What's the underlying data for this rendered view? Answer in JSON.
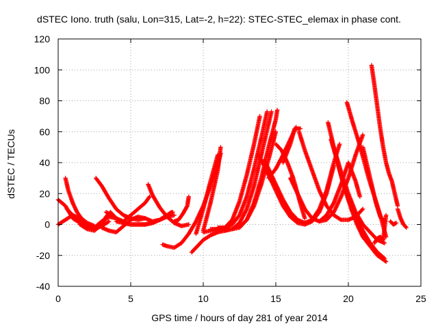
{
  "chart_data": {
    "type": "scatter",
    "title": "dSTEC Iono. truth (salu, Lon=315, Lat=-2, h=22): STEC-STEC_elemax in phase cont.",
    "xlabel": "GPS time / hours of day 281 of year 2014",
    "ylabel": "dSTEC  / TECUs",
    "xlim": [
      0,
      25
    ],
    "ylim": [
      -40,
      120
    ],
    "xticks": [
      "0",
      "5",
      "10",
      "15",
      "20",
      "25"
    ],
    "yticks": [
      "-40",
      "-20",
      "0",
      "20",
      "40",
      "60",
      "80",
      "100",
      "120"
    ],
    "grid": true,
    "legend": "none",
    "marker": "plus",
    "color": "#ff0000",
    "series": [
      {
        "x": [
          0.0,
          0.5,
          1.0,
          1.5,
          2.0,
          2.5,
          3.0
        ],
        "y": [
          16,
          12,
          4,
          1,
          -2,
          -3,
          0
        ]
      },
      {
        "x": [
          0.0,
          0.5,
          1.0,
          1.5,
          2.0,
          2.5,
          3.0,
          3.5
        ],
        "y": [
          0,
          3,
          6,
          4,
          0,
          -3,
          -1,
          2
        ]
      },
      {
        "x": [
          0.5,
          0.7,
          1.0,
          1.3,
          1.6,
          2.0,
          2.5
        ],
        "y": [
          30,
          22,
          14,
          8,
          4,
          1,
          -1
        ]
      },
      {
        "x": [
          0.6,
          1.0,
          1.5,
          2.0,
          2.5,
          3.0
        ],
        "y": [
          10,
          6,
          2,
          -2,
          -3,
          2
        ]
      },
      {
        "x": [
          1.5,
          2.0,
          2.5,
          3.0,
          3.3,
          3.6,
          4.0
        ],
        "y": [
          0,
          -3,
          -4,
          0,
          5,
          8,
          4
        ]
      },
      {
        "x": [
          2.0,
          2.5,
          3.0,
          3.5,
          4.0,
          4.5,
          5.0,
          5.5,
          6.0,
          6.3
        ],
        "y": [
          -2,
          -2,
          2,
          5,
          4,
          2,
          6,
          10,
          14,
          18
        ]
      },
      {
        "x": [
          2.6,
          3.0,
          3.5,
          4.0,
          4.5,
          5.0,
          5.5,
          6.0
        ],
        "y": [
          30,
          25,
          17,
          10,
          6,
          4,
          3,
          4
        ]
      },
      {
        "x": [
          3.0,
          3.5,
          4.0,
          4.5,
          5.0,
          5.5,
          6.0,
          6.5,
          7.0,
          7.5,
          8.0
        ],
        "y": [
          -2,
          -4,
          -5,
          -1,
          3,
          5,
          4,
          2,
          3,
          5,
          6
        ]
      },
      {
        "x": [
          3.3,
          4.0,
          4.5,
          5.0,
          5.5,
          6.0,
          6.5,
          7.0,
          7.5,
          7.8
        ],
        "y": [
          8,
          4,
          1,
          0,
          0,
          0,
          1,
          3,
          6,
          8
        ]
      },
      {
        "x": [
          4.0,
          4.5,
          5.0,
          5.5,
          6.0,
          6.5,
          7.0,
          7.5,
          7.9
        ],
        "y": [
          2,
          1,
          0,
          0,
          0,
          1,
          3,
          6,
          8
        ]
      },
      {
        "x": [
          6.2,
          6.5,
          7.0,
          7.5,
          8.0,
          8.5,
          9.0
        ],
        "y": [
          26,
          19,
          11,
          5,
          1,
          -1,
          0
        ]
      },
      {
        "x": [
          7.2,
          7.5,
          8.0,
          8.5,
          9.0,
          9.5,
          10.0,
          10.5,
          11.0,
          11.2
        ],
        "y": [
          -13,
          -14,
          -15,
          -12,
          -6,
          2,
          12,
          25,
          38,
          46
        ]
      },
      {
        "x": [
          8.0,
          8.3,
          8.6,
          8.9,
          9.0
        ],
        "y": [
          2,
          3,
          7,
          12,
          18
        ]
      },
      {
        "x": [
          9.2,
          9.6,
          10.0,
          10.5,
          11.0,
          11.5,
          11.8
        ],
        "y": [
          -18,
          -14,
          -10,
          -7,
          -5,
          -4,
          -3
        ]
      },
      {
        "x": [
          10.0,
          10.5,
          11.0,
          11.5,
          11.9
        ],
        "y": [
          -5,
          -4,
          -3,
          -2,
          0
        ]
      },
      {
        "x": [
          9.5,
          10.0,
          10.5,
          11.0
        ],
        "y": [
          -6,
          10,
          28,
          45
        ]
      },
      {
        "x": [
          10.0,
          10.5,
          11.0,
          11.2
        ],
        "y": [
          -4,
          14,
          35,
          50
        ]
      },
      {
        "x": [
          10.5,
          11.0,
          11.5,
          12.0,
          12.5,
          13.0,
          13.5,
          13.9
        ],
        "y": [
          -3,
          -3,
          -2,
          3,
          15,
          32,
          52,
          70
        ]
      },
      {
        "x": [
          11.0,
          11.5,
          12.0,
          12.5,
          13.0,
          13.5,
          14.0,
          14.4
        ],
        "y": [
          -2,
          -2,
          0,
          6,
          18,
          36,
          56,
          73
        ]
      },
      {
        "x": [
          11.5,
          12.0,
          12.5,
          13.0,
          13.5,
          14.0,
          14.5,
          14.7
        ],
        "y": [
          -4,
          -3,
          1,
          10,
          25,
          45,
          65,
          73
        ]
      },
      {
        "x": [
          12.0,
          12.5,
          13.0,
          13.5,
          14.0,
          14.5,
          15.0,
          15.1
        ],
        "y": [
          -3,
          -2,
          3,
          14,
          30,
          50,
          68,
          74
        ]
      },
      {
        "x": [
          12.5,
          13.0,
          13.5,
          14.0,
          14.5,
          15.0
        ],
        "y": [
          -2,
          3,
          12,
          26,
          42,
          60
        ]
      },
      {
        "x": [
          13.8,
          14.2,
          14.6,
          15.0,
          15.5,
          16.0,
          16.5,
          17.0,
          17.5,
          18.0,
          18.5,
          19.0
        ],
        "y": [
          45,
          38,
          30,
          22,
          12,
          5,
          1,
          0,
          2,
          8,
          20,
          38
        ]
      },
      {
        "x": [
          14.2,
          14.6,
          15.0,
          15.5,
          16.0,
          16.5,
          17.0,
          17.5,
          18.0,
          18.5,
          19.0,
          19.4
        ],
        "y": [
          42,
          34,
          26,
          16,
          8,
          3,
          1,
          3,
          10,
          22,
          40,
          52
        ]
      },
      {
        "x": [
          15.0,
          15.4,
          15.8,
          16.2,
          16.5,
          16.8,
          17.0
        ],
        "y": [
          52,
          48,
          40,
          30,
          20,
          10,
          4
        ]
      },
      {
        "x": [
          14.5,
          15.0,
          15.5,
          16.0,
          16.4
        ],
        "y": [
          30,
          36,
          45,
          55,
          63
        ]
      },
      {
        "x": [
          15.5,
          16.0,
          16.3,
          16.7
        ],
        "y": [
          40,
          52,
          62,
          62
        ]
      },
      {
        "x": [
          16.6,
          17.0,
          17.5,
          18.0,
          18.5,
          19.0,
          19.5,
          20.0,
          20.5,
          21.0
        ],
        "y": [
          60,
          48,
          35,
          22,
          12,
          6,
          3,
          3,
          5,
          10
        ]
      },
      {
        "x": [
          16.0,
          16.5,
          17.0,
          17.5,
          18.0,
          18.5,
          19.0,
          19.5,
          20.0,
          20.5,
          21.0
        ],
        "y": [
          30,
          20,
          10,
          4,
          2,
          3,
          8,
          18,
          30,
          45,
          58
        ]
      },
      {
        "x": [
          18.6,
          19.0,
          19.5,
          20.0,
          20.5,
          21.0,
          21.5,
          22.0,
          22.5
        ],
        "y": [
          66,
          50,
          34,
          20,
          8,
          0,
          -5,
          -10,
          -12
        ]
      },
      {
        "x": [
          18.8,
          19.2,
          19.6,
          20.0,
          20.5,
          21.0,
          21.5,
          22.0,
          22.5
        ],
        "y": [
          55,
          42,
          28,
          16,
          5,
          -4,
          -12,
          -18,
          -22
        ]
      },
      {
        "x": [
          19.0,
          19.4,
          19.8,
          20.2,
          20.6,
          21.0,
          21.5,
          22.0,
          22.6
        ],
        "y": [
          50,
          35,
          22,
          10,
          0,
          -8,
          -14,
          -20,
          -24
        ]
      },
      {
        "x": [
          19.9,
          20.3,
          20.7,
          21.0,
          21.4,
          21.8,
          22.2,
          22.6
        ],
        "y": [
          79,
          66,
          54,
          44,
          30,
          18,
          6,
          -8
        ]
      },
      {
        "x": [
          18.0,
          18.5,
          19.0,
          19.5,
          20.0,
          20.5,
          20.8
        ],
        "y": [
          2,
          6,
          14,
          26,
          40,
          28,
          18
        ]
      },
      {
        "x": [
          21.0,
          21.3,
          21.6,
          21.9,
          22.2,
          22.5
        ],
        "y": [
          50,
          38,
          26,
          14,
          5,
          2
        ]
      },
      {
        "x": [
          21.6,
          21.8,
          22.0,
          22.2,
          22.4,
          22.6,
          22.8,
          23.0,
          23.2,
          23.4
        ],
        "y": [
          103,
          90,
          76,
          62,
          50,
          40,
          33,
          28,
          20,
          12
        ]
      },
      {
        "x": [
          23.4,
          23.6,
          23.8,
          24.0
        ],
        "y": [
          10,
          4,
          0,
          -2
        ]
      },
      {
        "x": [
          22.9,
          23.1,
          23.3
        ],
        "y": [
          2,
          0,
          1
        ]
      },
      {
        "x": [
          21.8,
          22.0,
          22.2,
          22.4,
          22.6
        ],
        "y": [
          -12,
          -9,
          -8,
          -10,
          6
        ]
      }
    ]
  }
}
